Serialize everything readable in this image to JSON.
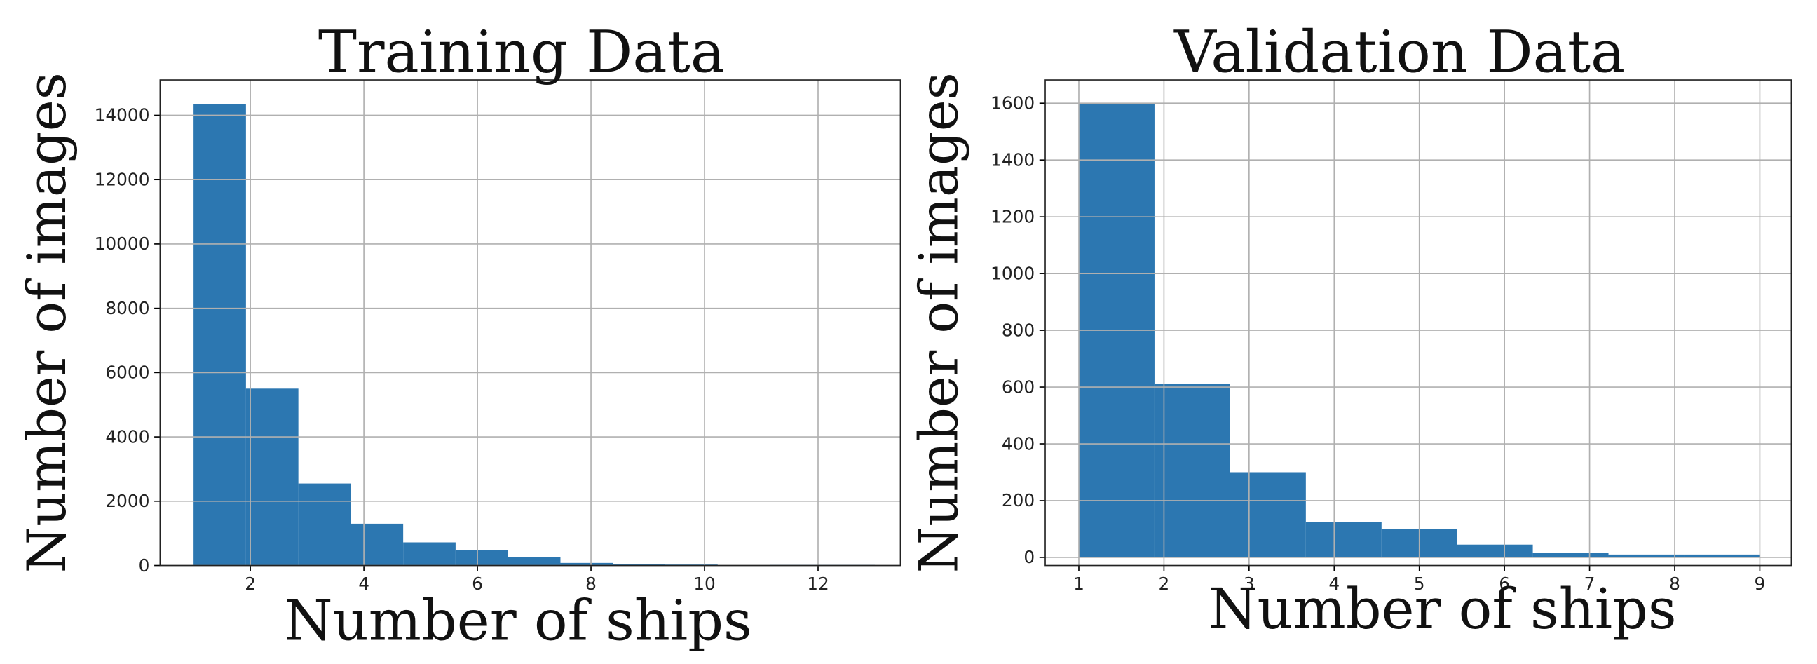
{
  "chart_data": [
    {
      "type": "histogram",
      "title": "Training Data",
      "xlabel": "Number of ships",
      "ylabel": "Number of images",
      "bins": [
        1,
        1.923,
        2.846,
        3.769,
        4.692,
        5.615,
        6.538,
        7.462,
        8.385,
        9.308,
        10.231,
        11.154,
        12.077,
        13
      ],
      "values": [
        14350,
        5500,
        2550,
        1300,
        720,
        480,
        270,
        80,
        40,
        30,
        10,
        20,
        20
      ],
      "color": "#2c77b1",
      "grid": true,
      "xlim": [
        0.41,
        13.45
      ],
      "ylim": [
        0,
        15100
      ],
      "xticks": [
        2,
        4,
        6,
        8,
        10,
        12
      ],
      "yticks": [
        0,
        2000,
        4000,
        6000,
        8000,
        10000,
        12000,
        14000
      ]
    },
    {
      "type": "histogram",
      "title": "Validation Data",
      "xlabel": "Number of ships",
      "ylabel": "Number of images",
      "bins": [
        1,
        1.889,
        2.778,
        3.667,
        4.556,
        5.444,
        6.333,
        7.222,
        8.111,
        9
      ],
      "values": [
        1600,
        610,
        300,
        125,
        100,
        45,
        15,
        10,
        10
      ],
      "color": "#2c77b1",
      "grid": true,
      "xlim": [
        0.605,
        9.37
      ],
      "ylim": [
        -28.6,
        1682
      ],
      "xticks": [
        1,
        2,
        3,
        4,
        5,
        6,
        7,
        8,
        9
      ],
      "yticks": [
        0,
        200,
        400,
        600,
        800,
        1000,
        1200,
        1400,
        1600
      ]
    }
  ]
}
